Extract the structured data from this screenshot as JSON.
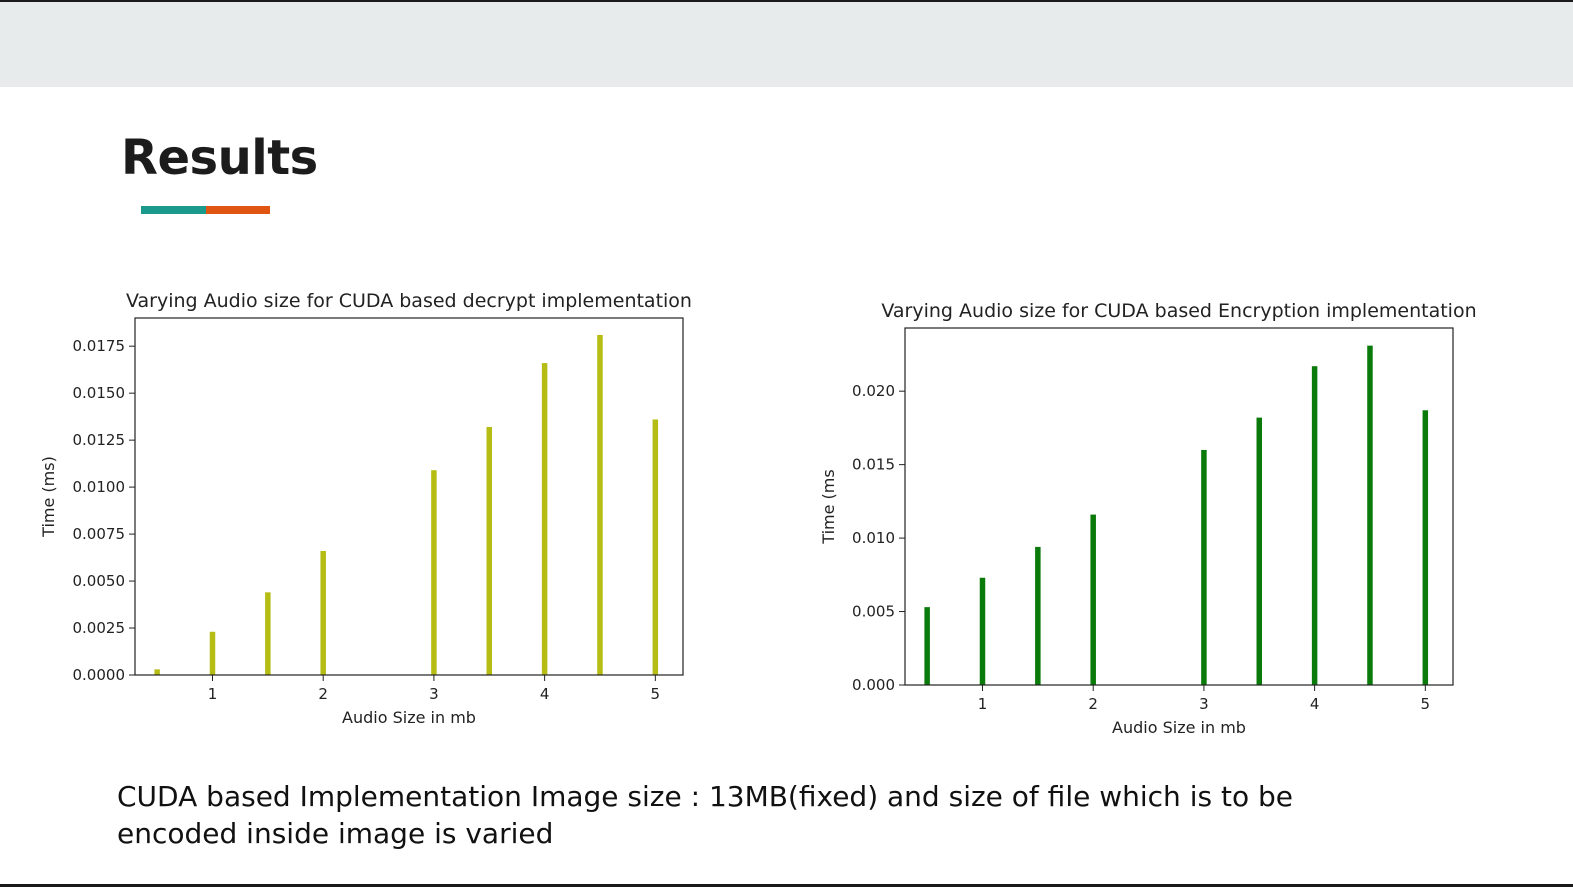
{
  "slide": {
    "title": "Results",
    "accent_colors": [
      "#1a9a8c",
      "#e05512"
    ],
    "caption": "CUDA based Implementation Image size : 13MB(fixed) and size of file which is to be encoded inside image is varied"
  },
  "chart_data": [
    {
      "type": "bar",
      "title": "Varying Audio size for CUDA based decrypt implementation",
      "xlabel": "Audio Size in mb",
      "ylabel": "Time (ms)",
      "color": "#b5bd14",
      "x": [
        0.5,
        1,
        1.5,
        2,
        3,
        3.5,
        4,
        4.5,
        5
      ],
      "values": [
        0.0003,
        0.0023,
        0.0044,
        0.0066,
        0.0109,
        0.0132,
        0.0166,
        0.0181,
        0.0136
      ],
      "xlim": [
        0.3,
        5.25
      ],
      "ylim": [
        0,
        0.019
      ],
      "xticks": [
        1,
        2,
        3,
        4,
        5
      ],
      "xtick_labels": [
        "1",
        "2",
        "3",
        "4",
        "5"
      ],
      "yticks": [
        0,
        0.0025,
        0.005,
        0.0075,
        0.01,
        0.0125,
        0.015,
        0.0175
      ],
      "ytick_labels": [
        "0.0000",
        "0.0025",
        "0.0050",
        "0.0075",
        "0.0100",
        "0.0125",
        "0.0150",
        "0.0175"
      ],
      "grid": false
    },
    {
      "type": "bar",
      "title": "Varying Audio size for CUDA based Encryption implementation",
      "xlabel": "Audio Size in mb",
      "ylabel": "Time (ms",
      "color": "#0a7a0a",
      "x": [
        0.5,
        1,
        1.5,
        2,
        3,
        3.5,
        4,
        4.5,
        5
      ],
      "values": [
        0.0053,
        0.0073,
        0.0094,
        0.0116,
        0.016,
        0.0182,
        0.0217,
        0.0231,
        0.0187
      ],
      "xlim": [
        0.3,
        5.25
      ],
      "ylim": [
        0,
        0.0243
      ],
      "xticks": [
        1,
        2,
        3,
        4,
        5
      ],
      "xtick_labels": [
        "1",
        "2",
        "3",
        "4",
        "5"
      ],
      "yticks": [
        0,
        0.005,
        0.01,
        0.015,
        0.02
      ],
      "ytick_labels": [
        "0.000",
        "0.005",
        "0.010",
        "0.015",
        "0.020"
      ],
      "grid": false
    }
  ]
}
